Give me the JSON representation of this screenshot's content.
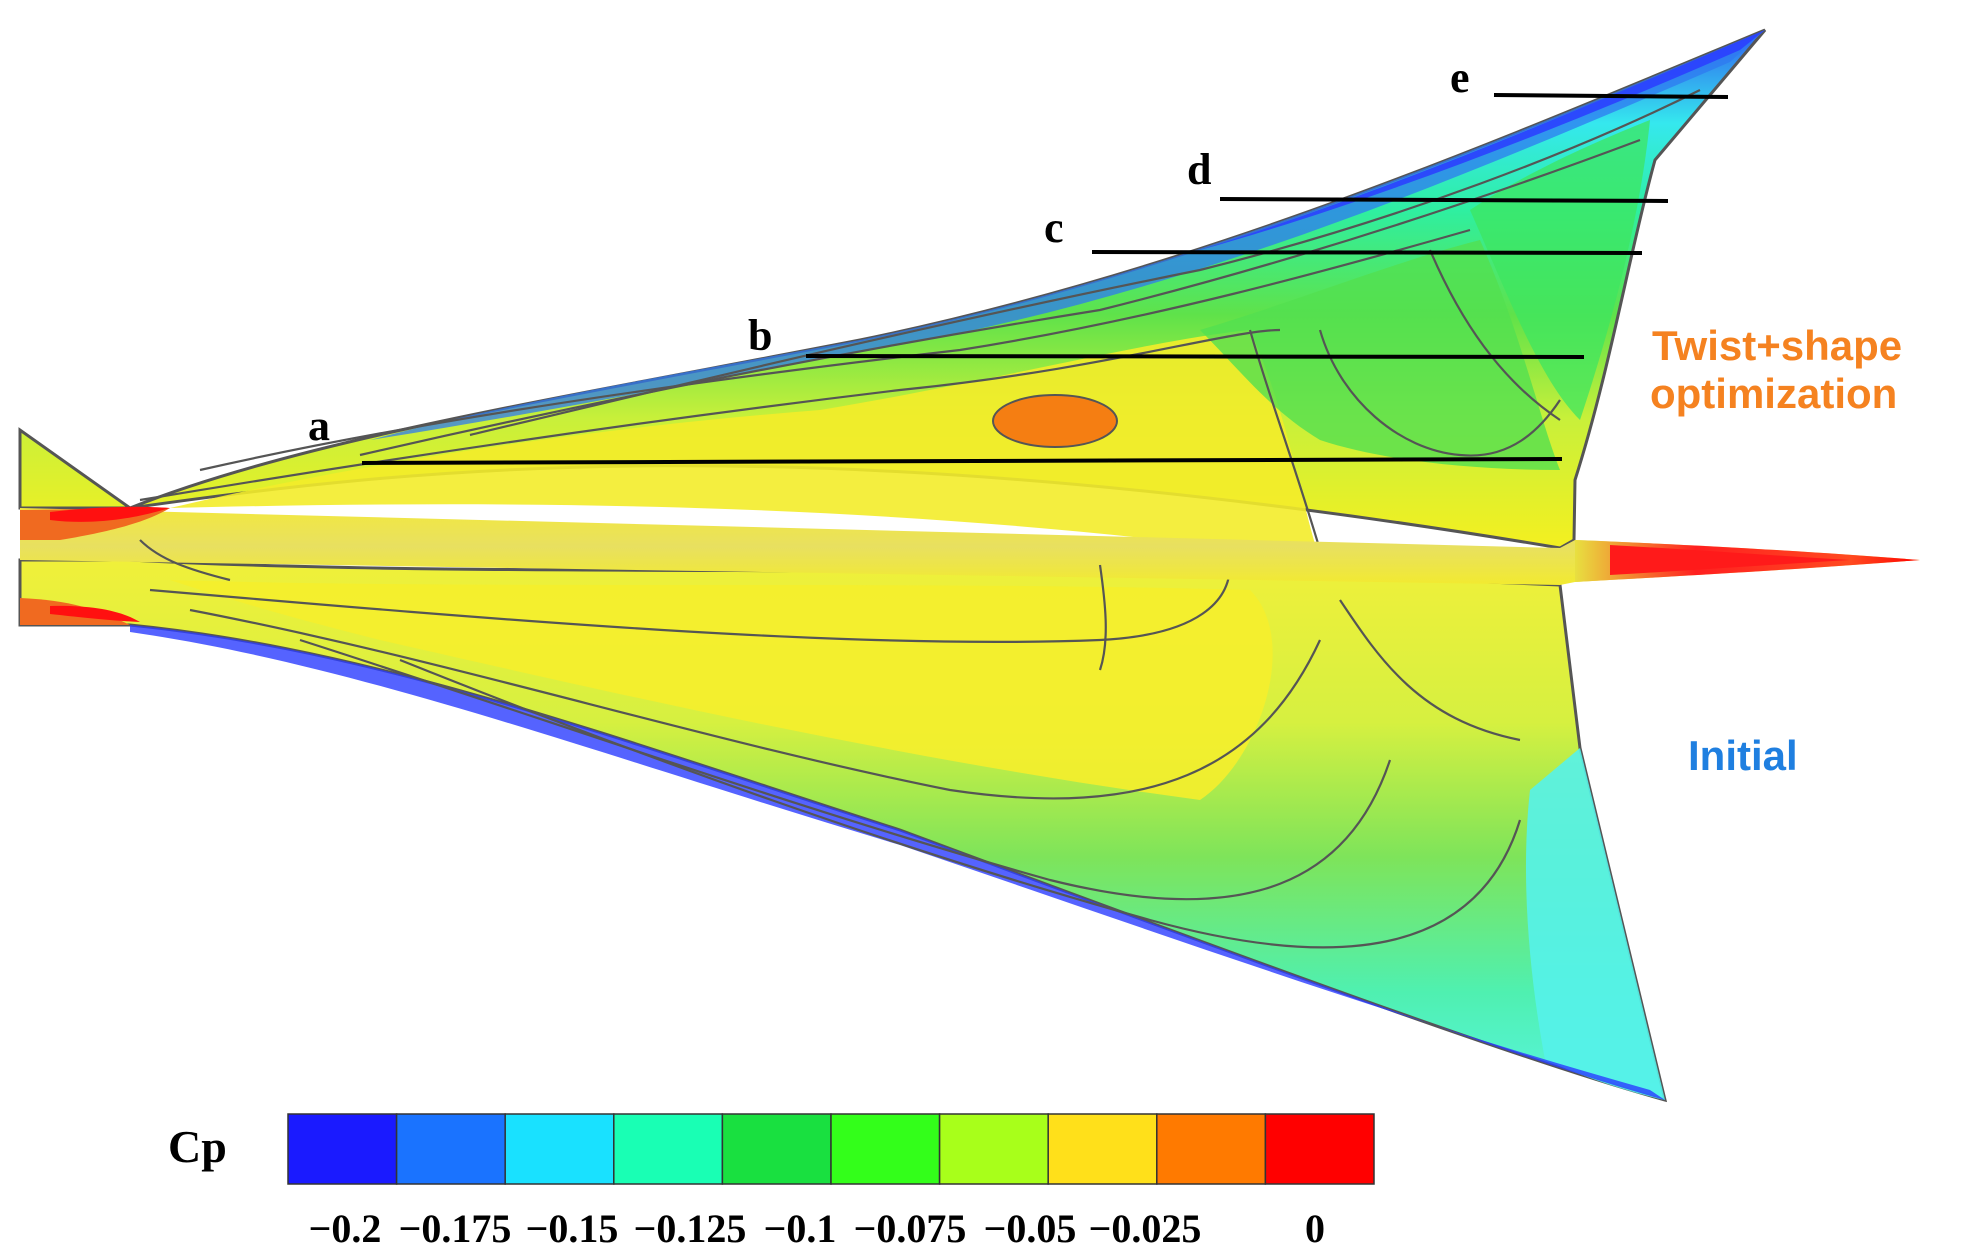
{
  "sections": [
    "a",
    "b",
    "c",
    "d",
    "e"
  ],
  "annotations": {
    "optimized": [
      "Twist+shape",
      "optimization"
    ],
    "optimized_color": "#f58220",
    "initial": "Initial",
    "initial_color": "#1f7fe0"
  },
  "colorbar": {
    "title": "Cp",
    "levels": [
      {
        "color": "#1a1aff"
      },
      {
        "color": "#1a73ff"
      },
      {
        "color": "#19e1ff"
      },
      {
        "color": "#19ffb4"
      },
      {
        "color": "#19e040"
      },
      {
        "color": "#33ff1a"
      },
      {
        "color": "#a8ff1a"
      },
      {
        "color": "#ffe01a"
      },
      {
        "color": "#ff7a00"
      },
      {
        "color": "#ff0000"
      }
    ],
    "tick_labels": [
      "−0.2",
      "−0.175",
      "−0.15",
      "−0.125",
      "−0.1",
      "−0.075",
      "−0.05",
      "−0.025",
      "0"
    ]
  }
}
